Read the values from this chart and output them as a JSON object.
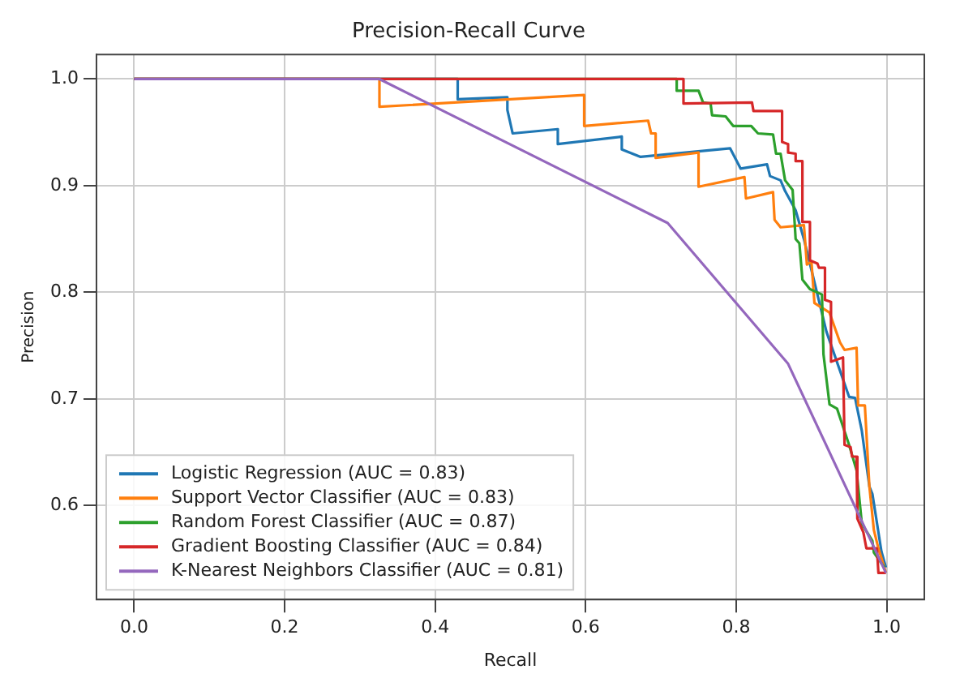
{
  "chart_data": {
    "type": "line",
    "title": "Precision-Recall Curve",
    "xlabel": "Recall",
    "ylabel": "Precision",
    "xlim": [
      -0.05,
      1.05
    ],
    "ylim": [
      0.512,
      1.023
    ],
    "xticks": [
      {
        "value": 0,
        "label": "0.0"
      },
      0.2,
      0.4,
      0.6,
      0.8,
      {
        "value": 1,
        "label": "1.0"
      }
    ],
    "yticks": [
      0.6,
      0.7,
      0.8,
      0.9,
      {
        "value": 1,
        "label": "1.0"
      }
    ],
    "grid": true,
    "legend": "bottom left",
    "marker": "none",
    "line_style": "solid",
    "series": [
      {
        "name": "Logistic Regression (AUC = 0.83)",
        "color": "#1f77b4",
        "x": [
          0,
          0.43,
          0.43,
          0.496,
          0.496,
          0.503,
          0.563,
          0.563,
          0.648,
          0.648,
          0.673,
          0.792,
          0.806,
          0.841,
          0.845,
          0.859,
          0.865,
          0.879,
          0.89,
          0.92,
          0.95,
          0.958,
          0.967,
          0.977,
          0.981,
          0.993,
          0.999
        ],
        "values": [
          1,
          1,
          0.981,
          0.983,
          0.971,
          0.949,
          0.953,
          0.939,
          0.946,
          0.934,
          0.927,
          0.935,
          0.916,
          0.92,
          0.909,
          0.905,
          0.895,
          0.877,
          0.85,
          0.763,
          0.702,
          0.701,
          0.67,
          0.618,
          0.611,
          0.557,
          0.542
        ]
      },
      {
        "name": "Support Vector Classifier (AUC = 0.83)",
        "color": "#ff7f0e",
        "x": [
          0,
          0.326,
          0.326,
          0.598,
          0.598,
          0.683,
          0.687,
          0.693,
          0.693,
          0.75,
          0.75,
          0.811,
          0.813,
          0.849,
          0.851,
          0.859,
          0.89,
          0.894,
          0.9,
          0.904,
          0.924,
          0.938,
          0.944,
          0.96,
          0.962,
          0.971,
          0.977,
          0.983,
          0.989,
          0.999
        ],
        "values": [
          1,
          1,
          0.974,
          0.985,
          0.956,
          0.961,
          0.949,
          0.949,
          0.926,
          0.931,
          0.899,
          0.908,
          0.888,
          0.894,
          0.868,
          0.861,
          0.863,
          0.826,
          0.829,
          0.79,
          0.781,
          0.753,
          0.746,
          0.748,
          0.694,
          0.694,
          0.618,
          0.577,
          0.56,
          0.537
        ]
      },
      {
        "name": "Random Forest Classifier (AUC = 0.87)",
        "color": "#2ca02c",
        "x": [
          0,
          0.721,
          0.721,
          0.75,
          0.756,
          0.766,
          0.768,
          0.786,
          0.796,
          0.82,
          0.829,
          0.849,
          0.853,
          0.859,
          0.865,
          0.875,
          0.879,
          0.884,
          0.888,
          0.898,
          0.914,
          0.916,
          0.924,
          0.934,
          0.95,
          0.96,
          0.967,
          0.981,
          0.983,
          0.997
        ],
        "values": [
          1,
          1,
          0.989,
          0.989,
          0.978,
          0.977,
          0.966,
          0.965,
          0.956,
          0.956,
          0.949,
          0.948,
          0.93,
          0.93,
          0.905,
          0.896,
          0.85,
          0.846,
          0.812,
          0.803,
          0.798,
          0.742,
          0.695,
          0.691,
          0.657,
          0.633,
          0.583,
          0.567,
          0.556,
          0.542
        ]
      },
      {
        "name": "Gradient Boosting Classifier (AUC = 0.84)",
        "color": "#d62728",
        "x": [
          0,
          0.73,
          0.73,
          0.821,
          0.823,
          0.861,
          0.861,
          0.869,
          0.869,
          0.879,
          0.879,
          0.888,
          0.888,
          0.898,
          0.898,
          0.908,
          0.91,
          0.918,
          0.918,
          0.926,
          0.926,
          0.942,
          0.944,
          0.952,
          0.954,
          0.96,
          0.961,
          0.969,
          0.973,
          0.987,
          0.989,
          0.999
        ],
        "values": [
          1,
          1,
          0.977,
          0.978,
          0.97,
          0.97,
          0.941,
          0.939,
          0.931,
          0.93,
          0.923,
          0.923,
          0.866,
          0.866,
          0.83,
          0.827,
          0.823,
          0.823,
          0.793,
          0.791,
          0.735,
          0.739,
          0.657,
          0.655,
          0.646,
          0.646,
          0.588,
          0.575,
          0.56,
          0.56,
          0.537,
          0.537
        ]
      },
      {
        "name": "K-Nearest Neighbors Classifier (AUC = 0.81)",
        "color": "#9467bd",
        "x": [
          0,
          0.326,
          0.709,
          0.869,
          0.999
        ],
        "values": [
          1,
          1,
          0.865,
          0.733,
          0.537
        ]
      }
    ]
  }
}
